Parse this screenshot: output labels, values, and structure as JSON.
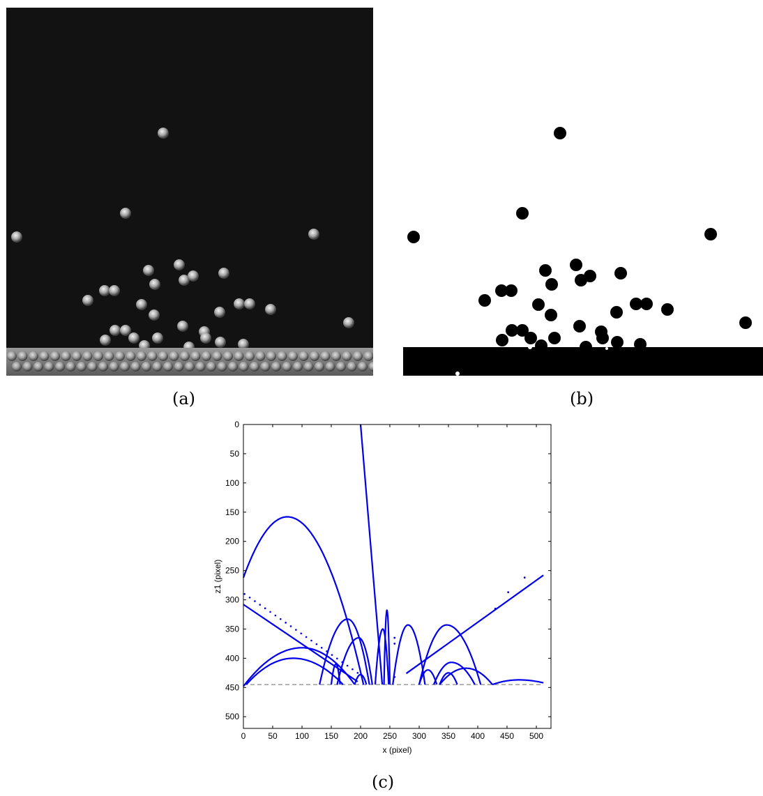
{
  "figure": {
    "captions": {
      "a": "(a)",
      "b": "(b)",
      "c": "(c)"
    }
  },
  "panel_a": {
    "kind": "grayscale camera frame of bouncing spheres above a packed bed"
  },
  "panel_b": {
    "kind": "binarized frame"
  },
  "chart_data": {
    "type": "scatter",
    "title": "",
    "xlabel": "x (pixel)",
    "ylabel": "z1 (pixel)",
    "xlim": [
      0,
      525
    ],
    "ylim": [
      520,
      0
    ],
    "y_inverted": true,
    "xticks": [
      0,
      50,
      100,
      150,
      200,
      250,
      300,
      350,
      400,
      450,
      500
    ],
    "yticks": [
      0,
      50,
      100,
      150,
      200,
      250,
      300,
      350,
      400,
      450,
      500
    ],
    "grid": false,
    "legend": "none",
    "series_color": "#0000ee",
    "reference_line": {
      "z": 445,
      "style": "dashed",
      "color": "#888888"
    },
    "trajectories": [
      {
        "shape": "arc",
        "x0": 0,
        "x1": 205,
        "peak_x": 75,
        "peak_z": 158,
        "base_z": 262,
        "end_z": 445
      },
      {
        "shape": "line",
        "points": [
          [
            200,
            0
          ],
          [
            237,
            445
          ]
        ]
      },
      {
        "shape": "line",
        "points": [
          [
            0,
            308
          ],
          [
            195,
            440
          ]
        ]
      },
      {
        "shape": "dots",
        "points": [
          [
            2,
            290
          ],
          [
            195,
            425
          ]
        ]
      },
      {
        "shape": "arc",
        "x0": 0,
        "x1": 190,
        "peak_x": 100,
        "peak_z": 382,
        "base_z": 448,
        "end_z": 445
      },
      {
        "shape": "arc",
        "x0": 5,
        "x1": 170,
        "peak_x": 85,
        "peak_z": 400,
        "base_z": 445,
        "end_z": 445
      },
      {
        "shape": "arc",
        "x0": 130,
        "x1": 215,
        "peak_x": 178,
        "peak_z": 333,
        "base_z": 445,
        "end_z": 445
      },
      {
        "shape": "arc",
        "x0": 160,
        "x1": 220,
        "peak_x": 197,
        "peak_z": 365,
        "base_z": 445,
        "end_z": 445
      },
      {
        "shape": "arc",
        "x0": 150,
        "x1": 165,
        "peak_x": 158,
        "peak_z": 410,
        "base_z": 445,
        "end_z": 445
      },
      {
        "shape": "arc",
        "x0": 190,
        "x1": 210,
        "peak_x": 200,
        "peak_z": 428,
        "base_z": 445,
        "end_z": 445
      },
      {
        "shape": "arc",
        "x0": 225,
        "x1": 248,
        "peak_x": 238,
        "peak_z": 350,
        "base_z": 445,
        "end_z": 445
      },
      {
        "shape": "arc",
        "x0": 240,
        "x1": 250,
        "peak_x": 245,
        "peak_z": 318,
        "base_z": 445,
        "end_z": 445
      },
      {
        "shape": "arc",
        "x0": 255,
        "x1": 310,
        "peak_x": 281,
        "peak_z": 343,
        "base_z": 445,
        "end_z": 445
      },
      {
        "shape": "line",
        "points": [
          [
            278,
            426
          ],
          [
            512,
            258
          ]
        ]
      },
      {
        "shape": "arc",
        "x0": 300,
        "x1": 405,
        "peak_x": 347,
        "peak_z": 343,
        "base_z": 445,
        "end_z": 445
      },
      {
        "shape": "arc",
        "x0": 300,
        "x1": 330,
        "peak_x": 315,
        "peak_z": 420,
        "base_z": 445,
        "end_z": 445
      },
      {
        "shape": "arc",
        "x0": 325,
        "x1": 395,
        "peak_x": 355,
        "peak_z": 407,
        "base_z": 445,
        "end_z": 445
      },
      {
        "shape": "arc",
        "x0": 335,
        "x1": 425,
        "peak_x": 380,
        "peak_z": 417,
        "base_z": 445,
        "end_z": 445
      },
      {
        "shape": "arc",
        "x0": 335,
        "x1": 365,
        "peak_x": 350,
        "peak_z": 425,
        "base_z": 445,
        "end_z": 445
      },
      {
        "shape": "arc",
        "x0": 425,
        "x1": 512,
        "peak_x": 470,
        "peak_z": 437,
        "base_z": 445,
        "end_z": 442
      },
      {
        "shape": "dots",
        "points": [
          [
            258,
            375
          ],
          [
            258,
            365
          ],
          [
            258,
            432
          ],
          [
            430,
            315
          ],
          [
            452,
            287
          ],
          [
            480,
            262
          ]
        ]
      }
    ]
  }
}
